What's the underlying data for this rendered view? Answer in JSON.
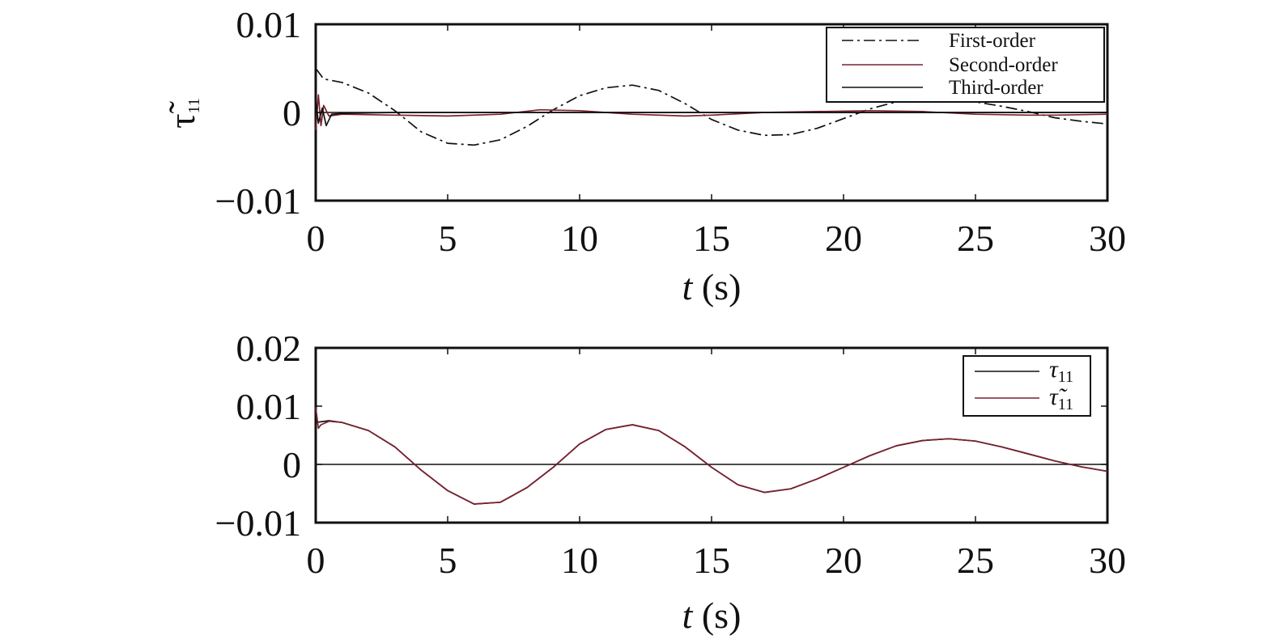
{
  "chart_data": [
    {
      "type": "line",
      "ylabel_symbol": "τ̃",
      "ylabel_subscript": "11",
      "xlabel_var": "t",
      "xlabel_unit": " (s)",
      "xlim": [
        0,
        30
      ],
      "ylim": [
        -0.01,
        0.01
      ],
      "xticks": [
        0,
        5,
        10,
        15,
        20,
        25,
        30
      ],
      "yticks": [
        0.01,
        0,
        -0.01
      ],
      "ytick_labels": [
        "0.01",
        "0",
        "−0.01"
      ],
      "legend_position": "top-right",
      "series": [
        {
          "name": "First-order",
          "style": "dashdot",
          "color": "#111111",
          "x": [
            0,
            0.3,
            1,
            2,
            3,
            4,
            5,
            6,
            7,
            8,
            9,
            10,
            11,
            12,
            13,
            14,
            15,
            16,
            17,
            18,
            19,
            20,
            21,
            22,
            23,
            24,
            25,
            26,
            27,
            28,
            29,
            30
          ],
          "y": [
            0.005,
            0.0038,
            0.0034,
            0.0022,
            0.0002,
            -0.0022,
            -0.0035,
            -0.0037,
            -0.0031,
            -0.0016,
            0.0003,
            0.0019,
            0.0028,
            0.0031,
            0.0025,
            0.001,
            -0.0008,
            -0.002,
            -0.0026,
            -0.0025,
            -0.0018,
            -0.0007,
            0.0004,
            0.0012,
            0.0016,
            0.0016,
            0.0012,
            0.0007,
            0.0001,
            -0.0006,
            -0.001,
            -0.0013
          ]
        },
        {
          "name": "Second-order",
          "style": "solid",
          "color": "#7a2030",
          "x": [
            0,
            0.1,
            0.2,
            0.3,
            0.5,
            1,
            3,
            5,
            7,
            8.5,
            10,
            12,
            14,
            15,
            17,
            19,
            21,
            23,
            25,
            27,
            28,
            30
          ],
          "y": [
            -0.002,
            0.002,
            -0.0015,
            0.0008,
            -0.0004,
            -0.0002,
            -0.0003,
            -0.0004,
            -0.0002,
            0.0003,
            0.0002,
            -0.0002,
            -0.0004,
            -0.0003,
            0.0,
            0.0001,
            0.0002,
            0.0001,
            -0.0002,
            -0.0003,
            -0.0003,
            -0.0002
          ]
        },
        {
          "name": "Third-order",
          "style": "solid",
          "color": "#111111",
          "x": [
            0,
            0.1,
            0.25,
            0.4,
            0.6,
            1,
            3,
            30
          ],
          "y": [
            0.0015,
            -0.0012,
            0.0005,
            -0.0015,
            -0.0002,
            -0.0001,
            0.0,
            0.0
          ]
        }
      ]
    },
    {
      "type": "line",
      "xlabel_var": "t",
      "xlabel_unit": " (s)",
      "xlim": [
        0,
        30
      ],
      "ylim": [
        -0.01,
        0.02
      ],
      "xticks": [
        0,
        5,
        10,
        15,
        20,
        25,
        30
      ],
      "yticks": [
        0.02,
        0.01,
        0,
        -0.01
      ],
      "ytick_labels": [
        "0.02",
        "0.01",
        "0",
        "−0.01"
      ],
      "legend_position": "top-right",
      "series": [
        {
          "name_symbol": "τ",
          "name_subscript": "11",
          "style": "solid",
          "color": "#111111",
          "x": [
            0,
            0.5,
            1,
            2,
            3,
            4,
            5,
            6,
            7,
            8,
            9,
            10,
            11,
            12,
            13,
            14,
            15,
            16,
            17,
            18,
            19,
            20,
            21,
            22,
            23,
            24,
            25,
            26,
            27,
            28,
            29,
            30
          ],
          "y": [
            0.0072,
            0.0075,
            0.0072,
            0.0058,
            0.003,
            -0.001,
            -0.0045,
            -0.0068,
            -0.0065,
            -0.004,
            -0.0005,
            0.0035,
            0.006,
            0.0068,
            0.0058,
            0.003,
            -0.0005,
            -0.0035,
            -0.0048,
            -0.0042,
            -0.0025,
            -0.0005,
            0.0015,
            0.0032,
            0.0041,
            0.0044,
            0.004,
            0.003,
            0.0018,
            0.0006,
            -0.0004,
            -0.0012
          ]
        },
        {
          "name_symbol": "τ̃",
          "name_subscript": "11",
          "style": "solid",
          "color": "#7a2030",
          "x": [
            0,
            0.1,
            0.2,
            0.3,
            0.5,
            1,
            2,
            3,
            4,
            5,
            6,
            7,
            8,
            9,
            10,
            11,
            12,
            13,
            14,
            15,
            16,
            17,
            18,
            19,
            20,
            21,
            22,
            23,
            24,
            25,
            26,
            27,
            28,
            29,
            30
          ],
          "y": [
            0.0098,
            0.0062,
            0.0068,
            0.007,
            0.0074,
            0.0072,
            0.0058,
            0.003,
            -0.001,
            -0.0045,
            -0.0068,
            -0.0065,
            -0.004,
            -0.0005,
            0.0035,
            0.006,
            0.0068,
            0.0058,
            0.003,
            -0.0005,
            -0.0035,
            -0.0048,
            -0.0042,
            -0.0025,
            -0.0005,
            0.0015,
            0.0032,
            0.0041,
            0.0044,
            0.004,
            0.003,
            0.0018,
            0.0006,
            -0.0004,
            -0.0012
          ]
        }
      ]
    }
  ]
}
